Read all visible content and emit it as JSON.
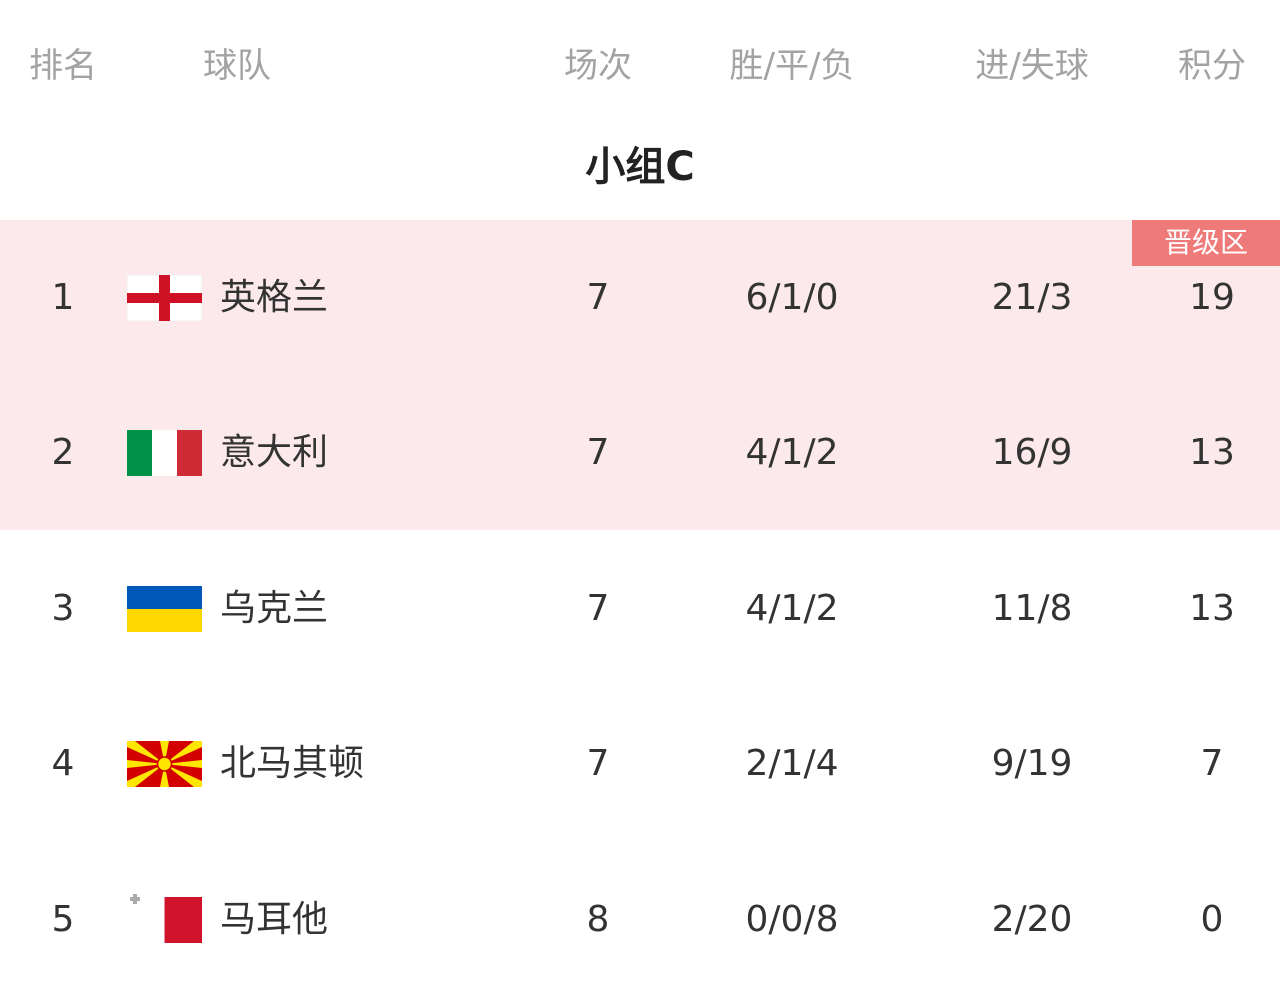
{
  "header": {
    "rank": "排名",
    "team": "球队",
    "played": "场次",
    "wdl": "胜/平/负",
    "goals": "进/失球",
    "points": "积分"
  },
  "group_title": "小组C",
  "qualify_badge": "晋级区",
  "colors": {
    "qualify_band": "#fce9eb",
    "badge": "#ef7a7a"
  },
  "rows": [
    {
      "rank": "1",
      "flag": "england-flag",
      "team": "英格兰",
      "played": "7",
      "wdl": "6/1/0",
      "goals": "21/3",
      "points": "19"
    },
    {
      "rank": "2",
      "flag": "italy-flag",
      "team": "意大利",
      "played": "7",
      "wdl": "4/1/2",
      "goals": "16/9",
      "points": "13"
    },
    {
      "rank": "3",
      "flag": "ukraine-flag",
      "team": "乌克兰",
      "played": "7",
      "wdl": "4/1/2",
      "goals": "11/8",
      "points": "13"
    },
    {
      "rank": "4",
      "flag": "north-macedonia-flag",
      "team": "北马其顿",
      "played": "7",
      "wdl": "2/1/4",
      "goals": "9/19",
      "points": "7"
    },
    {
      "rank": "5",
      "flag": "malta-flag",
      "team": "马耳他",
      "played": "8",
      "wdl": "0/0/8",
      "goals": "2/20",
      "points": "0"
    }
  ]
}
